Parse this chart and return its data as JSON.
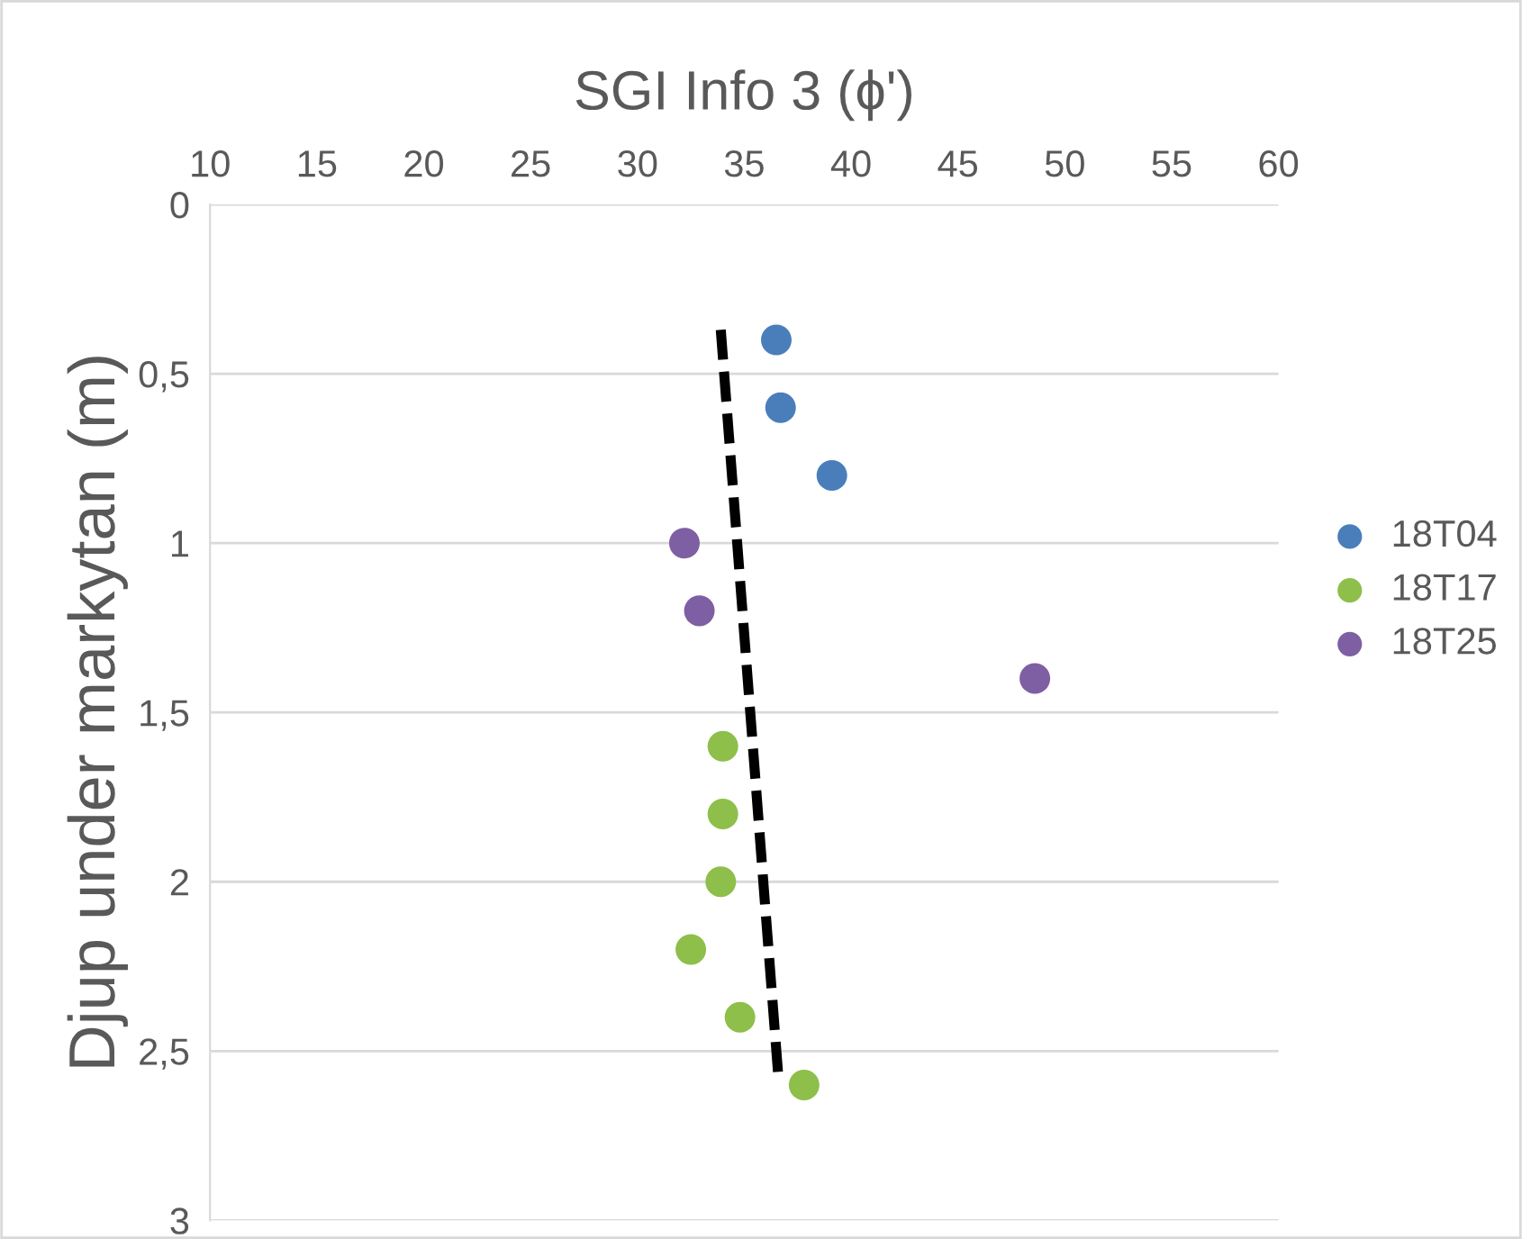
{
  "chart_data": {
    "type": "scatter",
    "title": "SGI Info 3 (ϕ')",
    "ylabel": "Djup under markytan (m)",
    "xlim": [
      10,
      60
    ],
    "xticks": [
      10,
      15,
      20,
      25,
      30,
      35,
      40,
      45,
      50,
      55,
      60
    ],
    "ylim": [
      3,
      0
    ],
    "yticks": [
      0,
      {
        "value": 0.5,
        "label": "0,5"
      },
      1,
      {
        "value": 1.5,
        "label": "1,5"
      },
      2,
      {
        "value": 2.5,
        "label": "2,5"
      },
      3
    ],
    "grid": "y",
    "legend": "right",
    "series": [
      {
        "name": "18T04",
        "marker": "circle",
        "color": "#4a7ebb",
        "x": [
          36.5,
          36.7,
          39.1
        ],
        "values": [
          0.4,
          0.6,
          0.8
        ]
      },
      {
        "name": "18T17",
        "marker": "circle",
        "color": "#8dbf4a",
        "x": [
          34.0,
          34.0,
          33.9,
          32.5,
          34.8,
          37.8
        ],
        "values": [
          1.6,
          1.8,
          2.0,
          2.2,
          2.4,
          2.6
        ]
      },
      {
        "name": "18T25",
        "marker": "circle",
        "color": "#7e5fa3",
        "x": [
          32.2,
          32.9,
          48.6
        ],
        "values": [
          1.0,
          1.2,
          1.4
        ]
      },
      {
        "type": "line",
        "marker": "none",
        "color": "#000000",
        "line_style": "dashed",
        "x": [
          33.9,
          36.6
        ],
        "values": [
          0.37,
          2.58
        ]
      }
    ]
  }
}
